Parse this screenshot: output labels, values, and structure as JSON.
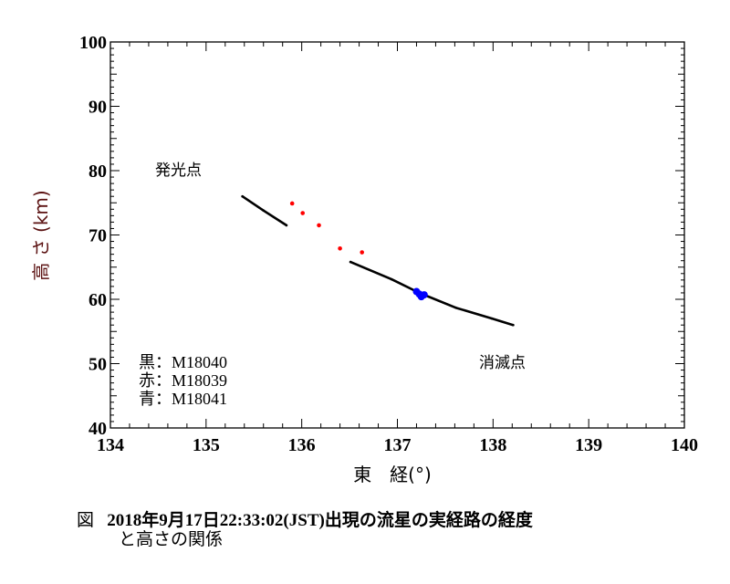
{
  "chart_data": {
    "type": "scatter",
    "xlabel": "東　経(°)",
    "ylabel": "高 さ (km)",
    "xlim": [
      134,
      140
    ],
    "ylim": [
      40,
      100
    ],
    "xticks": [
      134,
      135,
      136,
      137,
      138,
      139,
      140
    ],
    "yticks": [
      40,
      50,
      60,
      70,
      80,
      90,
      100
    ],
    "grid": false,
    "annotations": [
      {
        "text": "発光点",
        "x": 134.58,
        "y": 79.5
      },
      {
        "text": "消滅点",
        "x": 137.88,
        "y": 50.3
      }
    ],
    "legend": [
      {
        "text": "黒：M18040",
        "color": "#000000"
      },
      {
        "text": "赤：M18039",
        "color": "#ff0000"
      },
      {
        "text": "青：M18041",
        "color": "#0000ff"
      }
    ],
    "series": [
      {
        "name": "M18040",
        "color": "#000000",
        "points": [
          [
            135.38,
            76.0
          ],
          [
            135.6,
            73.8
          ],
          [
            135.84,
            71.5
          ]
        ]
      },
      {
        "name": "M18040",
        "color": "#000000",
        "points": [
          [
            136.51,
            65.8
          ],
          [
            136.94,
            63.1
          ],
          [
            137.23,
            61.0
          ],
          [
            137.61,
            58.7
          ],
          [
            137.99,
            57.0
          ],
          [
            138.21,
            56.0
          ]
        ]
      },
      {
        "name": "M18039",
        "color": "#ff0000",
        "points": [
          [
            135.9,
            74.9
          ],
          [
            136.01,
            73.4
          ],
          [
            136.18,
            71.5
          ],
          [
            136.4,
            67.9
          ],
          [
            136.63,
            67.3
          ]
        ]
      },
      {
        "name": "M18041",
        "color": "#0000ff",
        "points": [
          [
            137.2,
            61.2
          ],
          [
            137.23,
            60.8
          ],
          [
            137.25,
            60.4
          ],
          [
            137.28,
            60.7
          ]
        ]
      }
    ]
  },
  "caption": {
    "prefix": "図",
    "line1": "2018年9月17日22:33:02(JST)出現の流星の実経路の経度",
    "line2": "と高さの関係"
  }
}
